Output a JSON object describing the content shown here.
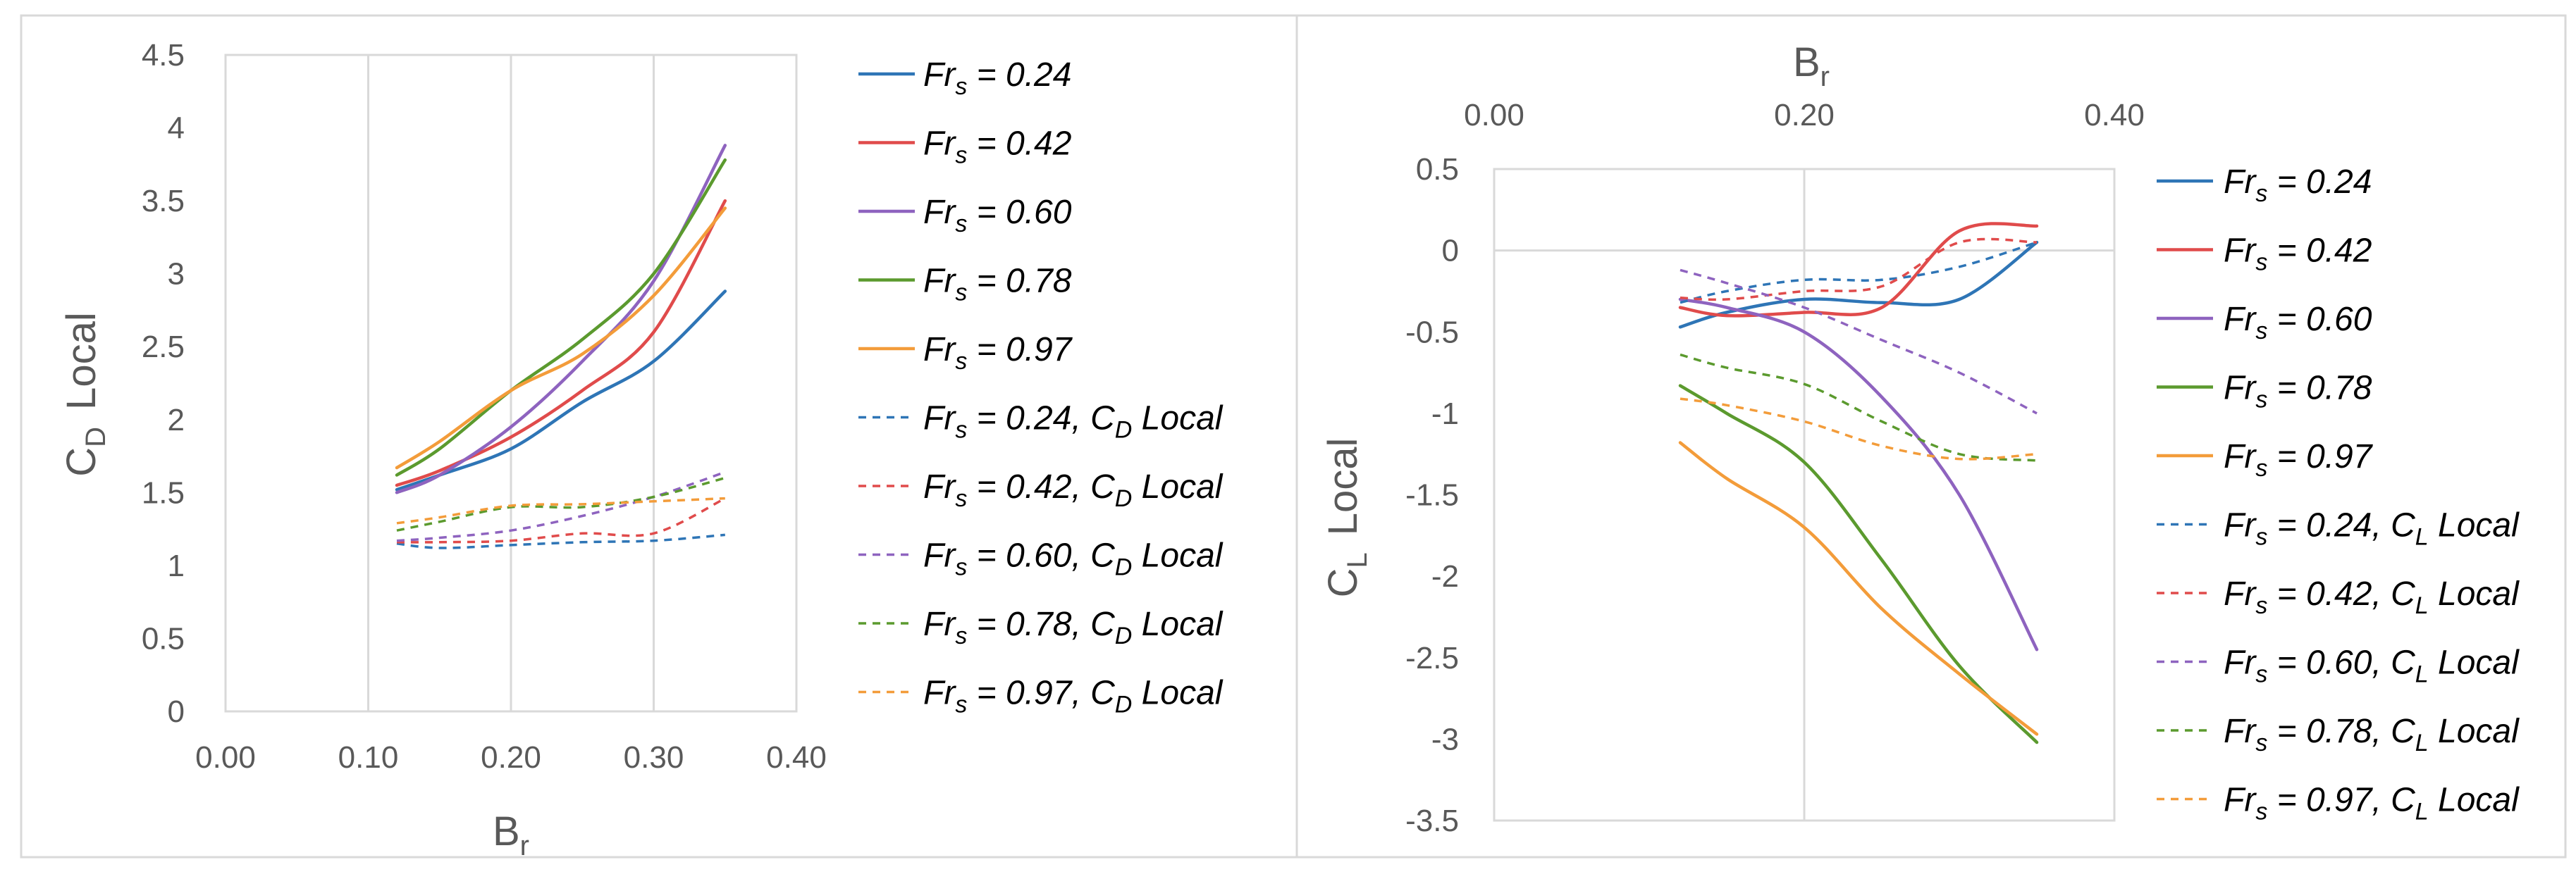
{
  "chart_data": [
    {
      "type": "line",
      "title": "",
      "xlabel": "Br",
      "xlabel_main": "B",
      "xlabel_sub": "r",
      "ylabel_main": "C",
      "ylabel_sub": "D",
      "ylabel_rest": "Local",
      "ylabel": "CD Local",
      "xlim": [
        0.0,
        0.4
      ],
      "ylim": [
        0.0,
        4.5
      ],
      "x_ticks": [
        "0.00",
        "0.10",
        "0.20",
        "0.30",
        "0.40"
      ],
      "y_ticks": [
        "0",
        "0.5",
        "1",
        "1.5",
        "2",
        "2.5",
        "3",
        "3.5",
        "4",
        "4.5"
      ],
      "grid": "vertical",
      "legend_position": "right",
      "series": [
        {
          "name": "Frs = 0.24",
          "label_main": "Fr",
          "label_sub": "s",
          "label_rest": " = 0.24",
          "color": "#2e75b6",
          "dash": "solid",
          "x": [
            0.12,
            0.15,
            0.2,
            0.25,
            0.3,
            0.35
          ],
          "y": [
            1.52,
            1.62,
            1.8,
            2.12,
            2.4,
            2.88
          ]
        },
        {
          "name": "Frs = 0.42",
          "label_main": "Fr",
          "label_sub": "s",
          "label_rest": " = 0.42",
          "color": "#e04b4b",
          "dash": "solid",
          "x": [
            0.12,
            0.15,
            0.2,
            0.25,
            0.3,
            0.35
          ],
          "y": [
            1.55,
            1.65,
            1.88,
            2.2,
            2.6,
            3.5
          ]
        },
        {
          "name": "Frs = 0.60",
          "label_main": "Fr",
          "label_sub": "s",
          "label_rest": " = 0.60",
          "color": "#8e63bf",
          "dash": "solid",
          "x": [
            0.12,
            0.15,
            0.2,
            0.25,
            0.3,
            0.35
          ],
          "y": [
            1.5,
            1.62,
            1.95,
            2.4,
            2.95,
            3.88
          ]
        },
        {
          "name": "Frs = 0.78",
          "label_main": "Fr",
          "label_sub": "s",
          "label_rest": " = 0.78",
          "color": "#5b9a2e",
          "dash": "solid",
          "x": [
            0.12,
            0.15,
            0.2,
            0.25,
            0.3,
            0.35
          ],
          "y": [
            1.62,
            1.8,
            2.2,
            2.55,
            3.0,
            3.78
          ]
        },
        {
          "name": "Frs = 0.97",
          "label_main": "Fr",
          "label_sub": "s",
          "label_rest": " = 0.97",
          "color": "#f39c3a",
          "dash": "solid",
          "x": [
            0.12,
            0.15,
            0.2,
            0.25,
            0.3,
            0.35
          ],
          "y": [
            1.67,
            1.85,
            2.2,
            2.45,
            2.85,
            3.45
          ]
        },
        {
          "name": "Frs = 0.24, CD Local",
          "label_main": "Fr",
          "label_sub": "s",
          "label_rest": " = 0.24, C",
          "label_sub2": "D",
          "label_rest2": " Local",
          "color": "#2e75b6",
          "dash": "dashed",
          "x": [
            0.12,
            0.15,
            0.2,
            0.25,
            0.3,
            0.35
          ],
          "y": [
            1.15,
            1.12,
            1.14,
            1.16,
            1.17,
            1.21
          ]
        },
        {
          "name": "Frs = 0.42, CD Local",
          "label_main": "Fr",
          "label_sub": "s",
          "label_rest": " = 0.42, C",
          "label_sub2": "D",
          "label_rest2": " Local",
          "color": "#e04b4b",
          "dash": "dashed",
          "x": [
            0.12,
            0.15,
            0.2,
            0.25,
            0.3,
            0.35
          ],
          "y": [
            1.16,
            1.16,
            1.17,
            1.22,
            1.22,
            1.46
          ]
        },
        {
          "name": "Frs = 0.60, CD Local",
          "label_main": "Fr",
          "label_sub": "s",
          "label_rest": " = 0.60, C",
          "label_sub2": "D",
          "label_rest2": " Local",
          "color": "#8e63bf",
          "dash": "dashed",
          "x": [
            0.12,
            0.15,
            0.2,
            0.25,
            0.3,
            0.35
          ],
          "y": [
            1.17,
            1.19,
            1.24,
            1.34,
            1.47,
            1.64
          ]
        },
        {
          "name": "Frs = 0.78, CD Local",
          "label_main": "Fr",
          "label_sub": "s",
          "label_rest": " = 0.78, C",
          "label_sub2": "D",
          "label_rest2": " Local",
          "color": "#5b9a2e",
          "dash": "dashed",
          "x": [
            0.12,
            0.15,
            0.2,
            0.25,
            0.3,
            0.35
          ],
          "y": [
            1.24,
            1.3,
            1.4,
            1.4,
            1.47,
            1.6
          ]
        },
        {
          "name": "Frs = 0.97, CD Local",
          "label_main": "Fr",
          "label_sub": "s",
          "label_rest": " = 0.97, C",
          "label_sub2": "D",
          "label_rest2": " Local",
          "color": "#f39c3a",
          "dash": "dashed",
          "x": [
            0.12,
            0.15,
            0.2,
            0.25,
            0.3,
            0.35
          ],
          "y": [
            1.29,
            1.33,
            1.41,
            1.42,
            1.44,
            1.46
          ]
        }
      ]
    },
    {
      "type": "line",
      "title": "",
      "xlabel": "Br",
      "xlabel_main": "B",
      "xlabel_sub": "r",
      "ylabel_main": "C",
      "ylabel_sub": "L",
      "ylabel_rest": "Local",
      "ylabel": "CL Local",
      "xlim": [
        0.0,
        0.4
      ],
      "ylim": [
        -3.5,
        0.5
      ],
      "x_axis_position": "top",
      "x_ticks": [
        "0.00",
        "0.20",
        "0.40"
      ],
      "y_ticks": [
        "0.5",
        "0",
        "-0.5",
        "-1",
        "-1.5",
        "-2",
        "-2.5",
        "-3",
        "-3.5"
      ],
      "grid": "vertical",
      "legend_position": "right",
      "series": [
        {
          "name": "Frs = 0.24",
          "label_main": "Fr",
          "label_sub": "s",
          "label_rest": " = 0.24",
          "color": "#2e75b6",
          "dash": "solid",
          "x": [
            0.12,
            0.15,
            0.2,
            0.25,
            0.3,
            0.35
          ],
          "y": [
            -0.47,
            -0.38,
            -0.3,
            -0.32,
            -0.3,
            0.05
          ]
        },
        {
          "name": "Frs = 0.42",
          "label_main": "Fr",
          "label_sub": "s",
          "label_rest": " = 0.42",
          "color": "#e04b4b",
          "dash": "solid",
          "x": [
            0.12,
            0.15,
            0.2,
            0.25,
            0.3,
            0.35
          ],
          "y": [
            -0.35,
            -0.4,
            -0.38,
            -0.35,
            0.12,
            0.15
          ]
        },
        {
          "name": "Frs = 0.60",
          "label_main": "Fr",
          "label_sub": "s",
          "label_rest": " = 0.60",
          "color": "#8e63bf",
          "dash": "solid",
          "x": [
            0.12,
            0.15,
            0.2,
            0.25,
            0.3,
            0.35
          ],
          "y": [
            -0.3,
            -0.35,
            -0.5,
            -0.9,
            -1.5,
            -2.45
          ]
        },
        {
          "name": "Frs = 0.78",
          "label_main": "Fr",
          "label_sub": "s",
          "label_rest": " = 0.78",
          "color": "#5b9a2e",
          "dash": "solid",
          "x": [
            0.12,
            0.15,
            0.2,
            0.25,
            0.3,
            0.35
          ],
          "y": [
            -0.83,
            -1.0,
            -1.3,
            -1.9,
            -2.55,
            -3.02
          ]
        },
        {
          "name": "Frs = 0.97",
          "label_main": "Fr",
          "label_sub": "s",
          "label_rest": " = 0.97",
          "color": "#f39c3a",
          "dash": "solid",
          "x": [
            0.12,
            0.15,
            0.2,
            0.25,
            0.3,
            0.35
          ],
          "y": [
            -1.18,
            -1.4,
            -1.7,
            -2.2,
            -2.6,
            -2.97
          ]
        },
        {
          "name": "Frs = 0.24, CL Local",
          "label_main": "Fr",
          "label_sub": "s",
          "label_rest": " = 0.24, C",
          "label_sub2": "L",
          "label_rest2": " Local",
          "color": "#2e75b6",
          "dash": "dashed",
          "x": [
            0.12,
            0.15,
            0.2,
            0.25,
            0.3,
            0.35
          ],
          "y": [
            -0.32,
            -0.25,
            -0.18,
            -0.18,
            -0.1,
            0.05
          ]
        },
        {
          "name": "Frs = 0.42, CL Local",
          "label_main": "Fr",
          "label_sub": "s",
          "label_rest": " = 0.42, C",
          "label_sub2": "L",
          "label_rest2": " Local",
          "color": "#e04b4b",
          "dash": "dashed",
          "x": [
            0.12,
            0.15,
            0.2,
            0.25,
            0.3,
            0.35
          ],
          "y": [
            -0.29,
            -0.3,
            -0.25,
            -0.22,
            0.05,
            0.05
          ]
        },
        {
          "name": "Frs = 0.60, CL Local",
          "label_main": "Fr",
          "label_sub": "s",
          "label_rest": " = 0.60, C",
          "label_sub2": "L",
          "label_rest2": " Local",
          "color": "#8e63bf",
          "dash": "dashed",
          "x": [
            0.12,
            0.15,
            0.2,
            0.25,
            0.3,
            0.35
          ],
          "y": [
            -0.12,
            -0.2,
            -0.35,
            -0.55,
            -0.75,
            -1.0
          ]
        },
        {
          "name": "Frs = 0.78, CL Local",
          "label_main": "Fr",
          "label_sub": "s",
          "label_rest": " = 0.78, C",
          "label_sub2": "L",
          "label_rest2": " Local",
          "color": "#5b9a2e",
          "dash": "dashed",
          "x": [
            0.12,
            0.15,
            0.2,
            0.25,
            0.3,
            0.35
          ],
          "y": [
            -0.64,
            -0.72,
            -0.82,
            -1.05,
            -1.25,
            -1.29
          ]
        },
        {
          "name": "Frs = 0.97, CL Local",
          "label_main": "Fr",
          "label_sub": "s",
          "label_rest": " = 0.97, C",
          "label_sub2": "L",
          "label_rest2": " Local",
          "color": "#f39c3a",
          "dash": "dashed",
          "x": [
            0.12,
            0.15,
            0.2,
            0.25,
            0.3,
            0.35
          ],
          "y": [
            -0.91,
            -0.95,
            -1.05,
            -1.2,
            -1.28,
            -1.25
          ]
        }
      ]
    }
  ]
}
